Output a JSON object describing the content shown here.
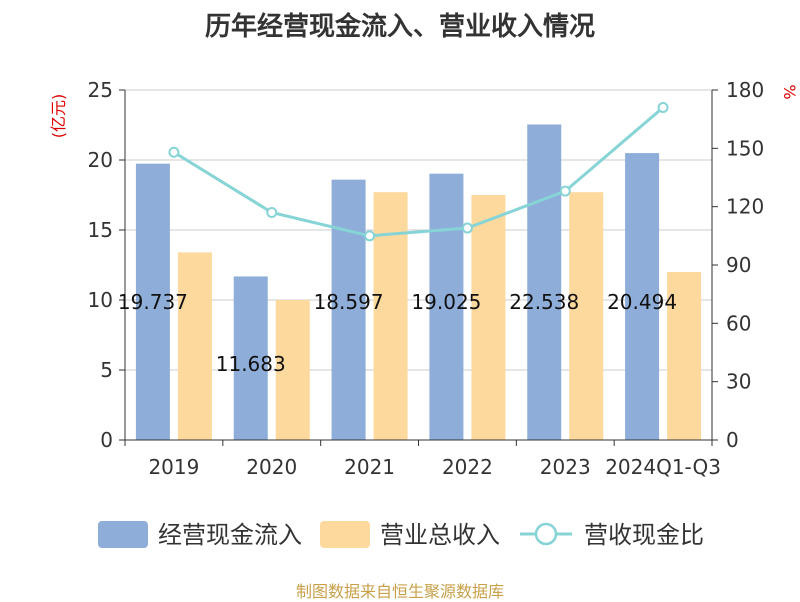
{
  "title": "历年经营现金流入、营业收入情况",
  "footer": "制图数据来自恒生聚源数据库",
  "colors": {
    "bar_cash": "#8eadd9",
    "bar_revenue": "#fed99d",
    "line_ratio": "#86d4d6",
    "axis": "#333333",
    "grid": "#cccccc",
    "unit_label": "#dd0000",
    "title": "#333333",
    "footer": "#c8a04a"
  },
  "chart_data": {
    "type": "bar",
    "title": "历年经营现金流入、营业收入情况",
    "categories": [
      "2019",
      "2020",
      "2021",
      "2022",
      "2023",
      "2024Q1-Q3"
    ],
    "ylabel_left": "(亿元)",
    "ylabel_right": "%",
    "ylim_left": [
      0,
      25
    ],
    "ylim_right": [
      0,
      180
    ],
    "yticks_left": [
      "0",
      "5",
      "10",
      "15",
      "20",
      "25"
    ],
    "yticks_right": [
      "0",
      "30",
      "60",
      "90",
      "120",
      "150",
      "180"
    ],
    "grid": true,
    "legend_position": "bottom",
    "series": [
      {
        "name": "经营现金流入",
        "type": "bar",
        "axis": "left",
        "values": [
          19.737,
          11.683,
          18.597,
          19.025,
          22.538,
          20.494
        ],
        "labels": [
          "19.737",
          "11.683",
          "18.597",
          "19.025",
          "22.538",
          "20.494"
        ]
      },
      {
        "name": "营业总收入",
        "type": "bar",
        "axis": "left",
        "values": [
          13.4,
          10.0,
          17.7,
          17.5,
          17.7,
          12.0
        ]
      },
      {
        "name": "营收现金比",
        "type": "line",
        "axis": "right",
        "values": [
          148,
          117,
          105,
          109,
          128,
          171
        ]
      }
    ]
  }
}
